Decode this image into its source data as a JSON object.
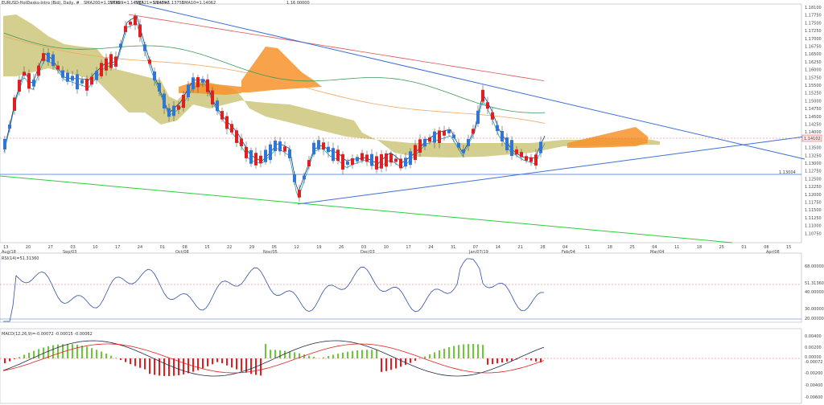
{
  "header": {
    "symbol": "EURUSD-HotDesks-Intro (Bid), Daily, #",
    "last": "1.14102",
    "sma200": "SMA200=1.15735",
    "sma89": "SMA89=1.14517",
    "sma21": "SMA21=1.14092",
    "sma5": "SMA5=1.13755",
    "ema10": "EMA10=1.14062",
    "top_right": "1.16 00000"
  },
  "price_axis": {
    "ticks": [
      "1.18100",
      "1.17750",
      "1.17500",
      "1.17250",
      "1.17000",
      "1.16750",
      "1.16500",
      "1.16250",
      "1.16000",
      "1.15750",
      "1.15500",
      "1.15250",
      "1.15000",
      "1.14750",
      "1.14500",
      "1.14250",
      "1.14000",
      "1.13750",
      "1.13500",
      "1.13250",
      "1.13000",
      "1.12750",
      "1.12500",
      "1.12250",
      "1.12000",
      "1.11750",
      "1.11500",
      "1.11250",
      "1.11000",
      "1.10750"
    ],
    "current_price": "1.14102",
    "level_label": "1.13004",
    "level_value": "1.13004"
  },
  "time_axis": {
    "days": [
      "13",
      "20",
      "27",
      "03",
      "10",
      "17",
      "24",
      "01",
      "08",
      "15",
      "22",
      "29",
      "05",
      "12",
      "19",
      "26",
      "03",
      "10",
      "17",
      "24",
      "31",
      "07",
      "14",
      "21",
      "28",
      "04",
      "11",
      "18",
      "25",
      "04",
      "11",
      "18",
      "25",
      "01",
      "08",
      "15"
    ],
    "months": [
      {
        "label": "Aug/18"
      },
      {
        "label": "Sep/03"
      },
      {
        "label": "Oct/08"
      },
      {
        "label": "Nov/05"
      },
      {
        "label": "Dec/03"
      },
      {
        "label": "Jan/07/19"
      },
      {
        "label": "Feb/04"
      },
      {
        "label": "Mar/04"
      },
      {
        "label": "Apr/08"
      }
    ]
  },
  "rsi_panel": {
    "label": "RSI(14)=51.31360",
    "ticks": [
      "68.00000",
      "51.31360",
      "40.00000",
      "30.00000",
      "20.00000"
    ]
  },
  "macd_panel": {
    "label": "MACD(12,26,9)=-0.00072 -0.00015 -0.00062",
    "ticks": [
      "0.00400",
      "0.00200",
      "0.00000",
      "-0.00072",
      "-0.00200",
      "-0.00400",
      "-0.00600"
    ]
  },
  "colors": {
    "bull_candle": "#2f76d6",
    "bear_candle": "#e02020",
    "cloud_a": "#cdc77a",
    "cloud_b": "#f7922a",
    "trendline": "#3f6fd8",
    "sma200": "#e05555",
    "green_line": "#2ecc40"
  }
}
